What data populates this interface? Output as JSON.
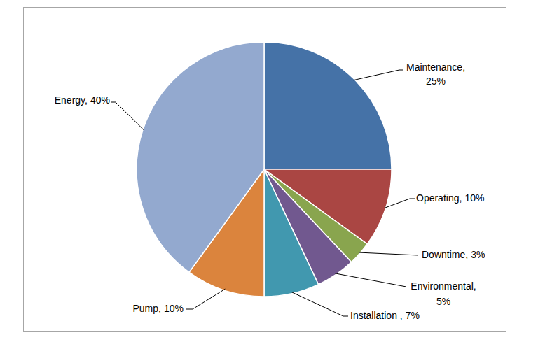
{
  "chart_data": {
    "type": "pie",
    "categories": [
      "Maintenance,",
      "Operating,",
      "Downtime,",
      "Environmental,",
      "Installation ,",
      "Pump,",
      "Energy,"
    ],
    "values": [
      25,
      10,
      3,
      5,
      7,
      10,
      40
    ],
    "value_labels": [
      "25%",
      "10%",
      "3%",
      "5%",
      "7%",
      "10%",
      "40%"
    ],
    "colors": [
      "#4572a7",
      "#aa4643",
      "#89a54e",
      "#71588f",
      "#4198af",
      "#db843d",
      "#93a9cf"
    ],
    "data_labels": true
  }
}
